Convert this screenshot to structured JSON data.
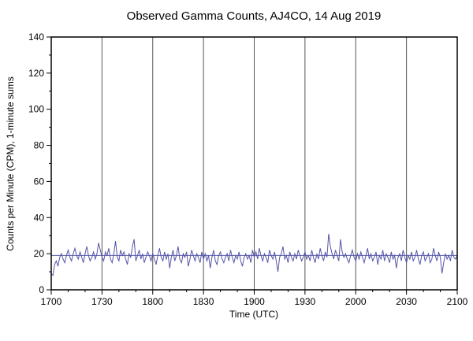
{
  "chart_data": {
    "type": "line",
    "title": "Observed Gamma Counts, AJ4CO, 14 Aug 2019",
    "xlabel": "Time (UTC)",
    "ylabel": "Counts per Minute (CPM), 1-minute sums",
    "x_start_minutes": 0,
    "x_end_minutes": 240,
    "x_tick_minutes": [
      0,
      30,
      60,
      90,
      120,
      150,
      180,
      210,
      240
    ],
    "x_tick_labels": [
      "1700",
      "1730",
      "1800",
      "1830",
      "1900",
      "1930",
      "2000",
      "2030",
      "2100"
    ],
    "x_minor_step": 10,
    "ylim": [
      0,
      140
    ],
    "y_ticks": [
      0,
      20,
      40,
      60,
      80,
      100,
      120,
      140
    ],
    "y_minor_step": 10,
    "grid": "vertical-only",
    "legend": "none",
    "line_color": "#5555aa",
    "mean_line_value": 19,
    "sample_interval_minutes": 1,
    "values": [
      9,
      8,
      14,
      16,
      13,
      18,
      20,
      17,
      15,
      19,
      22,
      18,
      16,
      20,
      23,
      19,
      17,
      21,
      18,
      15,
      20,
      24,
      19,
      16,
      18,
      21,
      17,
      20,
      26,
      22,
      18,
      16,
      21,
      19,
      23,
      17,
      15,
      20,
      27,
      18,
      16,
      22,
      19,
      21,
      17,
      14,
      20,
      18,
      24,
      28,
      16,
      19,
      22,
      17,
      20,
      15,
      18,
      21,
      19,
      16,
      20,
      17,
      14,
      19,
      23,
      18,
      16,
      21,
      17,
      20,
      12,
      18,
      22,
      16,
      19,
      24,
      17,
      15,
      20,
      18,
      21,
      13,
      17,
      22,
      19,
      16,
      20,
      18,
      15,
      21,
      17,
      20,
      16,
      19,
      12,
      18,
      22,
      16,
      14,
      19,
      21,
      17,
      15,
      18,
      20,
      16,
      22,
      18,
      15,
      19,
      17,
      21,
      16,
      13,
      18,
      20,
      17,
      19,
      15,
      22,
      18,
      21,
      17,
      23,
      19,
      16,
      20,
      18,
      15,
      22,
      19,
      17,
      21,
      16,
      10,
      18,
      20,
      24,
      17,
      19,
      15,
      21,
      18,
      16,
      20,
      17,
      22,
      19,
      16,
      18,
      21,
      17,
      19,
      16,
      22,
      18,
      15,
      20,
      17,
      23,
      19,
      16,
      21,
      18,
      31,
      24,
      20,
      17,
      22,
      19,
      16,
      28,
      21,
      18,
      20,
      17,
      15,
      19,
      22,
      18,
      16,
      20,
      17,
      21,
      18,
      15,
      19,
      23,
      17,
      20,
      16,
      18,
      21,
      14,
      19,
      17,
      22,
      16,
      20,
      18,
      15,
      21,
      17,
      19,
      12,
      18,
      20,
      16,
      22,
      18,
      15,
      19,
      17,
      21,
      16,
      18,
      22,
      17,
      14,
      19,
      21,
      16,
      18,
      20,
      15,
      17,
      23,
      19,
      16,
      21,
      18,
      9,
      15,
      20,
      17,
      19,
      16,
      22,
      18,
      17,
      19
    ]
  }
}
